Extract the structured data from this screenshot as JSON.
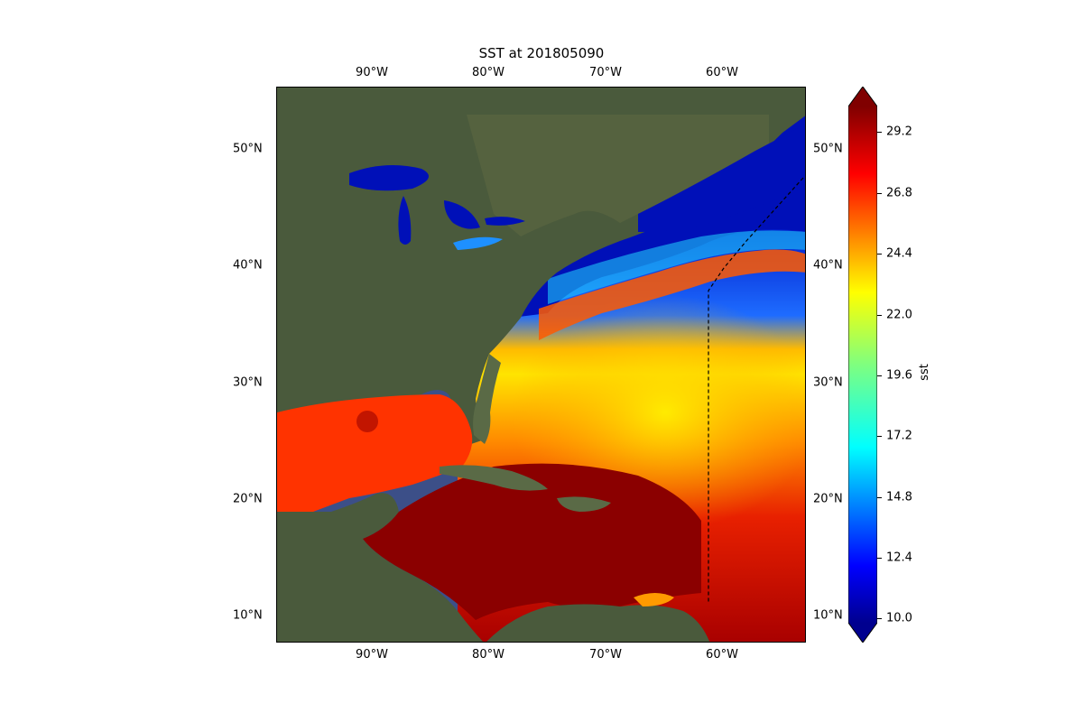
{
  "title": "SST at 201805090",
  "map": {
    "lon_ticks": [
      "90°W",
      "80°W",
      "70°W",
      "60°W"
    ],
    "lat_ticks": [
      "50°N",
      "40°N",
      "30°N",
      "20°N",
      "10°N"
    ],
    "boundary_line": "dashed",
    "basemap": "satellite imagery"
  },
  "colorbar": {
    "label": "sst",
    "ticks": [
      "29.2",
      "26.8",
      "24.4",
      "22.0",
      "19.6",
      "17.2",
      "14.8",
      "12.4",
      "10.0"
    ],
    "min": 10.0,
    "max": 30.0,
    "colormap": "jet",
    "extend": "both"
  },
  "colors": {
    "land": "#4a5a3c",
    "land_light": "#6b7656",
    "warm_sea": "#8b0000",
    "cold_sea": "#0010b8",
    "dashed_line": "#000000"
  }
}
